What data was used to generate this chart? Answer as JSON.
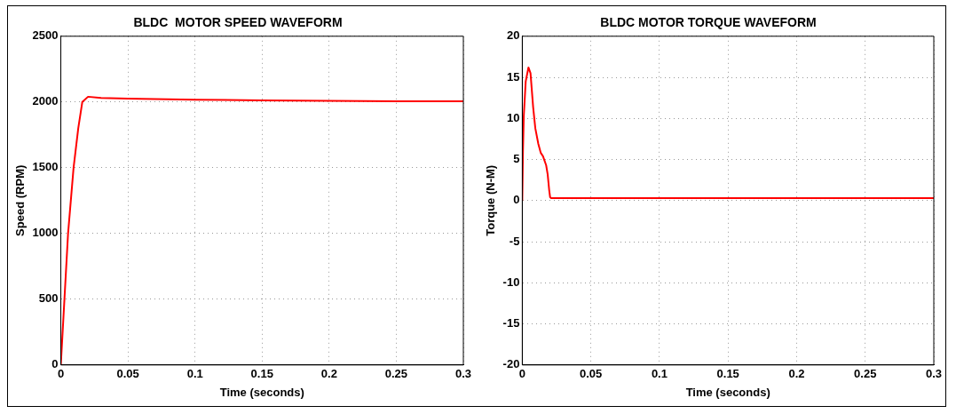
{
  "chart_data": [
    {
      "type": "line",
      "title": "BLDC  MOTOR SPEED WAVEFORM",
      "xlabel": "Time (seconds)",
      "ylabel": "Speed (RPM)",
      "xlim": [
        0,
        0.3
      ],
      "xticks": [
        0,
        0.05,
        0.1,
        0.15,
        0.2,
        0.25,
        0.3
      ],
      "ylim": [
        0,
        2500
      ],
      "yticks": [
        0,
        500,
        1000,
        1500,
        2000,
        2500
      ],
      "grid": true,
      "legend": false,
      "marker": "none",
      "line_style": "solid",
      "series": [
        {
          "color": "#ff0000",
          "x": [
            0,
            0.0027,
            0.0054,
            0.0095,
            0.013,
            0.016,
            0.0203,
            0.03,
            0.05,
            0.1,
            0.15,
            0.2,
            0.25,
            0.3
          ],
          "values": [
            0,
            500,
            1000,
            1500,
            1800,
            2000,
            2040,
            2030,
            2025,
            2018,
            2012,
            2008,
            2006,
            2005
          ]
        }
      ]
    },
    {
      "type": "line",
      "title": "BLDC MOTOR TORQUE WAVEFORM",
      "xlabel": "Time (seconds)",
      "ylabel": "Torque (N-M)",
      "xlim": [
        0,
        0.3
      ],
      "xticks": [
        0,
        0.05,
        0.1,
        0.15,
        0.2,
        0.25,
        0.3
      ],
      "ylim": [
        -20,
        20
      ],
      "yticks": [
        -20,
        -15,
        -10,
        -5,
        0,
        5,
        10,
        15,
        20
      ],
      "grid": true,
      "legend": false,
      "marker": "none",
      "line_style": "solid",
      "series": [
        {
          "color": "#ff0000",
          "x": [
            0,
            0.0005,
            0.0011,
            0.0025,
            0.0045,
            0.006,
            0.0079,
            0.0095,
            0.0117,
            0.0135,
            0.0151,
            0.0174,
            0.0185,
            0.0196,
            0.0203,
            0.021,
            0.05,
            0.1,
            0.15,
            0.2,
            0.25,
            0.3
          ],
          "values": [
            0,
            6,
            10.3,
            14.5,
            16.2,
            15.5,
            11.4,
            8.8,
            6.9,
            5.8,
            5.4,
            4.3,
            3.2,
            1.3,
            0.4,
            0.3,
            0.3,
            0.3,
            0.3,
            0.3,
            0.3,
            0.3
          ]
        }
      ]
    }
  ]
}
